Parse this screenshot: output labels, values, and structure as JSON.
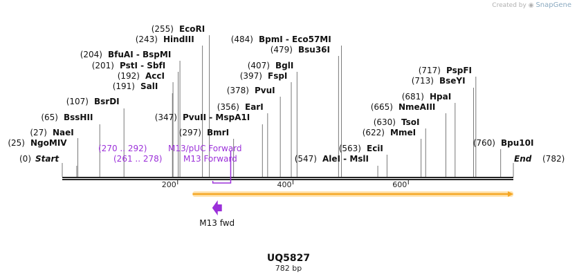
{
  "credit": {
    "text": "Created by",
    "brand": "SnapGene"
  },
  "map": {
    "length": 782,
    "name": "UQ5827",
    "size_label": "782 bp",
    "start_label": "Start",
    "start_pos": "(0)",
    "end_label": "End",
    "end_pos": "(782)"
  },
  "ticks": [
    {
      "value": 200,
      "label": "200"
    },
    {
      "value": 400,
      "label": "400"
    },
    {
      "value": 600,
      "label": "600"
    }
  ],
  "sites": [
    {
      "pos": 25,
      "pos_label": "(25)",
      "name": "NgoMIV"
    },
    {
      "pos": 27,
      "pos_label": "(27)",
      "name": "NaeI"
    },
    {
      "pos": 65,
      "pos_label": "(65)",
      "name": "BssHII"
    },
    {
      "pos": 107,
      "pos_label": "(107)",
      "name": "BsrDI"
    },
    {
      "pos": 191,
      "pos_label": "(191)",
      "name": "SalI"
    },
    {
      "pos": 192,
      "pos_label": "(192)",
      "name": "AccI"
    },
    {
      "pos": 201,
      "pos_label": "(201)",
      "name": "PstI - SbfI"
    },
    {
      "pos": 204,
      "pos_label": "(204)",
      "name": "BfuAI - BspMI"
    },
    {
      "pos": 243,
      "pos_label": "(243)",
      "name": "HindIII"
    },
    {
      "pos": 255,
      "pos_label": "(255)",
      "name": "EcoRI"
    },
    {
      "pos": 297,
      "pos_label": "(297)",
      "name": "BmrI"
    },
    {
      "pos": 347,
      "pos_label": "(347)",
      "name": "PvuII - MspA1I"
    },
    {
      "pos": 356,
      "pos_label": "(356)",
      "name": "EarI"
    },
    {
      "pos": 378,
      "pos_label": "(378)",
      "name": "PvuI"
    },
    {
      "pos": 397,
      "pos_label": "(397)",
      "name": "FspI"
    },
    {
      "pos": 407,
      "pos_label": "(407)",
      "name": "BglI"
    },
    {
      "pos": 479,
      "pos_label": "(479)",
      "name": "Bsu36I"
    },
    {
      "pos": 484,
      "pos_label": "(484)",
      "name": "BpmI - Eco57MI"
    },
    {
      "pos": 547,
      "pos_label": "(547)",
      "name": "AleI - MslI"
    },
    {
      "pos": 563,
      "pos_label": "(563)",
      "name": "EciI"
    },
    {
      "pos": 622,
      "pos_label": "(622)",
      "name": "MmeI"
    },
    {
      "pos": 630,
      "pos_label": "(630)",
      "name": "TsoI"
    },
    {
      "pos": 665,
      "pos_label": "(665)",
      "name": "NmeAIII"
    },
    {
      "pos": 681,
      "pos_label": "(681)",
      "name": "HpaI"
    },
    {
      "pos": 713,
      "pos_label": "(713)",
      "name": "BseYI"
    },
    {
      "pos": 717,
      "pos_label": "(717)",
      "name": "PspFI"
    },
    {
      "pos": 760,
      "pos_label": "(760)",
      "name": "Bpu10I"
    }
  ],
  "primer_labels": [
    {
      "start": 270,
      "end": 292,
      "range_label": "(270 .. 292)",
      "name": "M13/pUC Forward"
    },
    {
      "start": 261,
      "end": 278,
      "range_label": "(261 .. 278)",
      "name": "M13 Forward"
    }
  ],
  "features": [
    {
      "start": 226,
      "end": 782,
      "color": "#f5a623",
      "direction": "forward"
    }
  ],
  "primers": [
    {
      "start": 261,
      "end": 278,
      "label": "M13 fwd",
      "color": "#9b30d9",
      "direction": "reverse"
    }
  ],
  "colors": {
    "primer": "#9b30d9",
    "feature": "#f5a623",
    "backbone": "#222222",
    "leader": "#777777"
  }
}
